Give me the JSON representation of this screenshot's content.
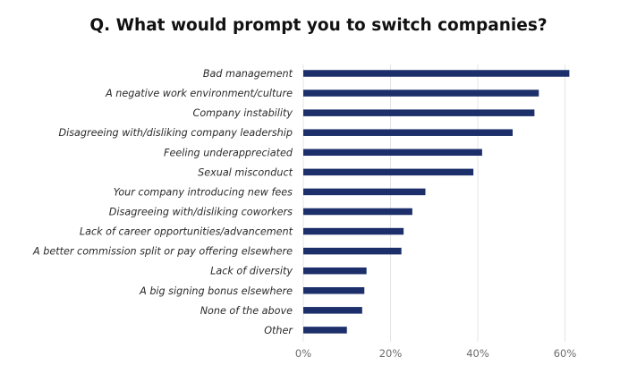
{
  "chart_data": {
    "type": "bar",
    "orientation": "horizontal",
    "title": "Q.  What would prompt you to switch companies?",
    "categories": [
      "Bad management",
      "A negative work environment/culture",
      "Company instability",
      "Disagreeing with/disliking company leadership",
      "Feeling underappreciated",
      "Sexual misconduct",
      "Your company introducing new fees",
      "Disagreeing with/disliking coworkers",
      "Lack of career opportunities/advancement",
      "A better commission split or pay offering elsewhere",
      "Lack of diversity",
      "A big signing bonus elsewhere",
      "None of the above",
      "Other"
    ],
    "values": [
      61,
      54,
      53,
      48,
      41,
      39,
      28,
      25,
      23,
      22.5,
      14.5,
      14,
      13.5,
      10
    ],
    "x_ticks": [
      "0%",
      "20%",
      "40%",
      "60%"
    ],
    "xlim": [
      0,
      65
    ],
    "unit": "%",
    "grid": true,
    "legend": "none",
    "colors": {
      "bar": "#1c2f6b",
      "grid": "#e4e4e4",
      "title": "#111111",
      "label": "#2b2b2b",
      "tick": "#6b6b6b"
    }
  }
}
